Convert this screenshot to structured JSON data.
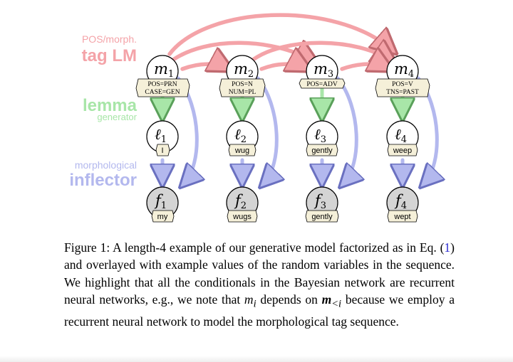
{
  "figure": {
    "labels": {
      "tag_lm_line1": "POS/morph.",
      "tag_lm_line2": "tag LM",
      "lemma_line1": "lemma",
      "lemma_line2": "generator",
      "inflector_line1": "morphological",
      "inflector_line2": "inflector"
    },
    "columns": [
      {
        "m_var": "m",
        "m_sub": "1",
        "tag_lines": [
          "POS=PRN",
          "CASE=GEN"
        ],
        "l_var": "ℓ",
        "l_sub": "1",
        "lemma": "I",
        "f_var": "f",
        "f_sub": "1",
        "form": "my"
      },
      {
        "m_var": "m",
        "m_sub": "2",
        "tag_lines": [
          "POS=N",
          "NUM=PL"
        ],
        "l_var": "ℓ",
        "l_sub": "2",
        "lemma": "wug",
        "f_var": "f",
        "f_sub": "2",
        "form": "wugs"
      },
      {
        "m_var": "m",
        "m_sub": "3",
        "tag_lines": [
          "POS=ADV"
        ],
        "l_var": "ℓ",
        "l_sub": "3",
        "lemma": "gently",
        "f_var": "f",
        "f_sub": "3",
        "form": "gently"
      },
      {
        "m_var": "m",
        "m_sub": "4",
        "tag_lines": [
          "POS=V",
          "TNS=PAST"
        ],
        "l_var": "ℓ",
        "l_sub": "4",
        "lemma": "weep",
        "f_var": "f",
        "f_sub": "4",
        "form": "wept"
      }
    ],
    "colors": {
      "tag_lm": "#f4a3a8",
      "lemma": "#a8e6a8",
      "inflector": "#b3b8ee",
      "observed_node_fill": "#d4d4d4",
      "tag_fill": "#f5f0d9"
    }
  },
  "caption": {
    "p1": "Figure 1: A length-4 example of our generative model factorized as in Eq. (",
    "ref": "1",
    "p2": ") and overlayed with example values of the random variables in the sequence. We highlight that all the conditionals in the Bayesian network are recurrent neural networks, e.g., we note that ",
    "mi": "m",
    "mi_sub": "i",
    "p3": " depends on ",
    "mlt": "m",
    "mlt_sub": "<i",
    "p4": " because we employ a recurrent neural network to model the morphological tag sequence."
  }
}
